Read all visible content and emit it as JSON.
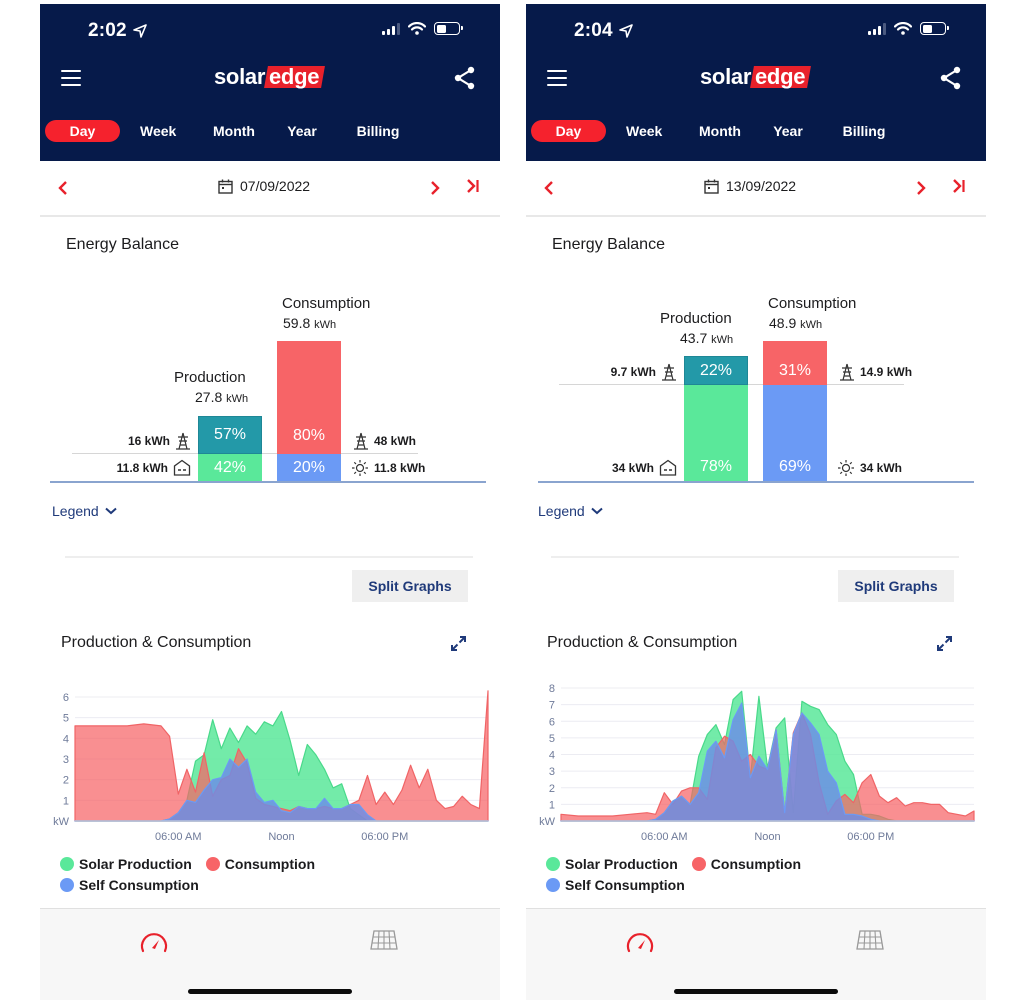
{
  "app": {
    "brand_part1": "solar",
    "brand_part2": "edge"
  },
  "colors": {
    "header_bg": "#061a4a",
    "accent_red": "#e8212b",
    "active_tab": "#f5222d",
    "production_export": "#2399a8",
    "production_self": "#5ae89a",
    "consumption_grid": "#f76467",
    "consumption_self": "#6b9af5",
    "link_blue": "#1f3a7a"
  },
  "screens": [
    {
      "status": {
        "time": "2:02"
      },
      "tabs": [
        {
          "label": "Day",
          "active": true
        },
        {
          "label": "Week",
          "active": false
        },
        {
          "label": "Month",
          "active": false
        },
        {
          "label": "Year",
          "active": false
        },
        {
          "label": "Billing",
          "active": false
        }
      ],
      "date": "07/09/2022",
      "energy_balance": {
        "title": "Energy Balance",
        "production": {
          "label": "Production",
          "value": "27.8",
          "unit": "kWh",
          "export_pct": "57%",
          "self_pct": "42%",
          "export_kwh": "16 kWh",
          "self_kwh": "11.8 kWh"
        },
        "consumption": {
          "label": "Consumption",
          "value": "59.8",
          "unit": "kWh",
          "grid_pct": "80%",
          "self_pct": "20%",
          "grid_kwh": "48 kWh",
          "self_kwh": "11.8 kWh"
        }
      },
      "legend_toggle": "Legend",
      "split_graphs": "Split Graphs",
      "chart_title": "Production & Consumption",
      "y_ticks": [
        "6",
        "5",
        "4",
        "3",
        "2",
        "1",
        "kW"
      ],
      "x_ticks": [
        "06:00 AM",
        "Noon",
        "06:00 PM"
      ],
      "legend": [
        "Solar Production",
        "Consumption",
        "Self Consumption"
      ]
    },
    {
      "status": {
        "time": "2:04"
      },
      "tabs": [
        {
          "label": "Day",
          "active": true
        },
        {
          "label": "Week",
          "active": false
        },
        {
          "label": "Month",
          "active": false
        },
        {
          "label": "Year",
          "active": false
        },
        {
          "label": "Billing",
          "active": false
        }
      ],
      "date": "13/09/2022",
      "energy_balance": {
        "title": "Energy Balance",
        "production": {
          "label": "Production",
          "value": "43.7",
          "unit": "kWh",
          "export_pct": "22%",
          "self_pct": "78%",
          "export_kwh": "9.7 kWh",
          "self_kwh": "34 kWh"
        },
        "consumption": {
          "label": "Consumption",
          "value": "48.9",
          "unit": "kWh",
          "grid_pct": "31%",
          "self_pct": "69%",
          "grid_kwh": "14.9 kWh",
          "self_kwh": "34 kWh"
        }
      },
      "legend_toggle": "Legend",
      "split_graphs": "Split Graphs",
      "chart_title": "Production & Consumption",
      "y_ticks": [
        "8",
        "7",
        "6",
        "5",
        "4",
        "3",
        "2",
        "1",
        "kW"
      ],
      "x_ticks": [
        "06:00 AM",
        "Noon",
        "06:00 PM"
      ],
      "legend": [
        "Solar Production",
        "Consumption",
        "Self Consumption"
      ]
    }
  ],
  "chart_data": [
    {
      "type": "area",
      "title": "Production & Consumption (07/09/2022)",
      "ylabel": "kW",
      "ylim": [
        0,
        6.5
      ],
      "grid": true,
      "x_ticks": [
        "06:00 AM",
        "Noon",
        "06:00 PM"
      ],
      "x_hours": [
        0,
        1,
        2,
        3,
        4,
        5,
        5.5,
        6,
        6.5,
        7,
        7.5,
        8,
        8.5,
        9,
        9.5,
        10,
        10.5,
        11,
        11.5,
        12,
        12.5,
        13,
        13.5,
        14,
        14.5,
        15,
        15.5,
        16,
        16.5,
        17,
        17.5,
        18,
        18.5,
        19,
        19.5,
        20,
        20.5,
        21,
        21.5,
        22,
        22.5,
        23,
        23.5,
        24
      ],
      "series": [
        {
          "name": "Solar Production",
          "color": "#5ae89a",
          "values": [
            0,
            0,
            0,
            0,
            0,
            0,
            0.1,
            0.4,
            1.0,
            2.9,
            3.2,
            4.9,
            3.5,
            4.5,
            3.8,
            4.6,
            4.2,
            4.8,
            4.6,
            5.3,
            3.9,
            2.2,
            3.7,
            3.2,
            2.5,
            1.6,
            1.8,
            0.6,
            0.3,
            0,
            0,
            0,
            0,
            0,
            0,
            0,
            0,
            0,
            0,
            0,
            0,
            0,
            0,
            0
          ]
        },
        {
          "name": "Consumption",
          "color": "#f76467",
          "values": [
            4.6,
            4.6,
            4.6,
            4.6,
            4.7,
            4.6,
            4.1,
            1.3,
            2.5,
            1.4,
            3.3,
            1.2,
            2.0,
            2.2,
            3.5,
            2.8,
            1.1,
            0.8,
            0.7,
            0.6,
            0.5,
            0.7,
            0.6,
            0.6,
            0.7,
            0.6,
            0.6,
            0.8,
            1.0,
            2.2,
            0.8,
            1.4,
            0.8,
            1.5,
            2.7,
            1.6,
            2.5,
            1.0,
            0.6,
            0.7,
            1.2,
            0.8,
            0.6,
            6.3
          ]
        },
        {
          "name": "Self Consumption",
          "color": "#6b9af5",
          "values": [
            0,
            0,
            0,
            0,
            0,
            0,
            0.1,
            0.4,
            1.0,
            0.9,
            1.5,
            2.0,
            2.1,
            3.0,
            2.6,
            3.0,
            1.4,
            0.9,
            1.0,
            0.5,
            0.4,
            0.7,
            0.6,
            0.6,
            1.1,
            0.6,
            0.6,
            0.8,
            0.8,
            0.3,
            0,
            0,
            0,
            0,
            0,
            0,
            0,
            0,
            0,
            0,
            0,
            0,
            0,
            0
          ]
        }
      ]
    },
    {
      "type": "area",
      "title": "Production & Consumption (13/09/2022)",
      "ylabel": "kW",
      "ylim": [
        0,
        8.2
      ],
      "grid": true,
      "x_ticks": [
        "06:00 AM",
        "Noon",
        "06:00 PM"
      ],
      "x_hours": [
        0,
        1,
        2,
        3,
        4,
        5,
        5.5,
        6,
        6.5,
        7,
        7.5,
        8,
        8.5,
        9,
        9.5,
        10,
        10.5,
        11,
        11.5,
        12,
        12.5,
        13,
        13.5,
        14,
        14.5,
        15,
        15.5,
        16,
        16.5,
        17,
        17.5,
        18,
        18.5,
        19,
        19.5,
        20,
        20.5,
        21,
        21.5,
        22,
        22.5,
        23,
        23.5,
        24
      ],
      "series": [
        {
          "name": "Solar Production",
          "color": "#5ae89a",
          "values": [
            0,
            0,
            0,
            0,
            0,
            0,
            0.1,
            0.5,
            1.2,
            1.5,
            1.0,
            3.9,
            5.2,
            5.8,
            4.6,
            7.3,
            7.8,
            2.6,
            7.5,
            3.2,
            5.6,
            6.2,
            0.5,
            7.2,
            6.9,
            6.7,
            5.8,
            5.2,
            3.6,
            2.8,
            0.4,
            0.4,
            0.3,
            0.1,
            0,
            0,
            0,
            0,
            0,
            0,
            0,
            0,
            0,
            0
          ]
        },
        {
          "name": "Consumption",
          "color": "#f76467",
          "values": [
            0.4,
            0.3,
            0.3,
            0.3,
            0.4,
            0.5,
            0.4,
            1.7,
            1.0,
            1.8,
            2.0,
            2.0,
            1.3,
            4.4,
            5.1,
            4.8,
            3.6,
            4.0,
            3.3,
            3.1,
            5.5,
            0.5,
            5.3,
            6.5,
            5.2,
            2.3,
            0.4,
            1.2,
            1.6,
            1.1,
            2.3,
            2.8,
            1.5,
            1.1,
            1.4,
            0.9,
            1.1,
            1.1,
            1.0,
            1.0,
            0.5,
            0.4,
            0.3,
            0.6
          ]
        },
        {
          "name": "Self Consumption",
          "color": "#6b9af5",
          "values": [
            0,
            0,
            0,
            0,
            0,
            0,
            0.1,
            0.5,
            1.2,
            1.5,
            1.0,
            1.7,
            4.2,
            4.8,
            3.8,
            6.1,
            7.1,
            2.6,
            3.9,
            3.1,
            5.5,
            0.5,
            5.2,
            6.5,
            5.9,
            5.2,
            3.0,
            2.3,
            0.4,
            0.4,
            0.3,
            0.1,
            0,
            0,
            0,
            0,
            0,
            0,
            0,
            0,
            0,
            0,
            0,
            0
          ]
        }
      ]
    }
  ],
  "bottom_nav": {
    "items": [
      "dashboard",
      "layout"
    ]
  }
}
